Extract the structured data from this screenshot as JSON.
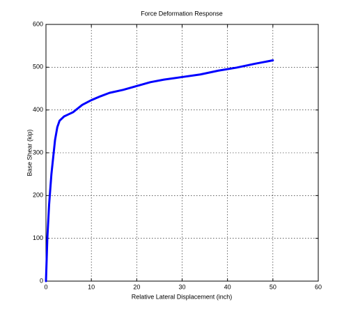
{
  "chart_data": {
    "type": "line",
    "title": "Force Deformation Response",
    "xlabel": "Relative Lateral Displacement (inch)",
    "ylabel": "Base Shear (kip)",
    "x": [
      0,
      0.3,
      0.7,
      1.2,
      2,
      2.5,
      3,
      4,
      5,
      6,
      8,
      10,
      12,
      14,
      17,
      20,
      23,
      26,
      30,
      34,
      38,
      42,
      46,
      50
    ],
    "values": [
      0,
      100,
      180,
      250,
      330,
      360,
      375,
      385,
      390,
      395,
      412,
      423,
      432,
      440,
      447,
      456,
      465,
      471,
      477,
      483,
      492,
      499,
      508,
      516
    ],
    "color": "#0000ff",
    "xlim": [
      0,
      60
    ],
    "xticks": [
      0,
      10,
      20,
      30,
      40,
      50,
      60
    ],
    "ylim": [
      0,
      600
    ],
    "yticks": [
      0,
      100,
      200,
      300,
      400,
      500,
      600
    ],
    "grid": true
  }
}
